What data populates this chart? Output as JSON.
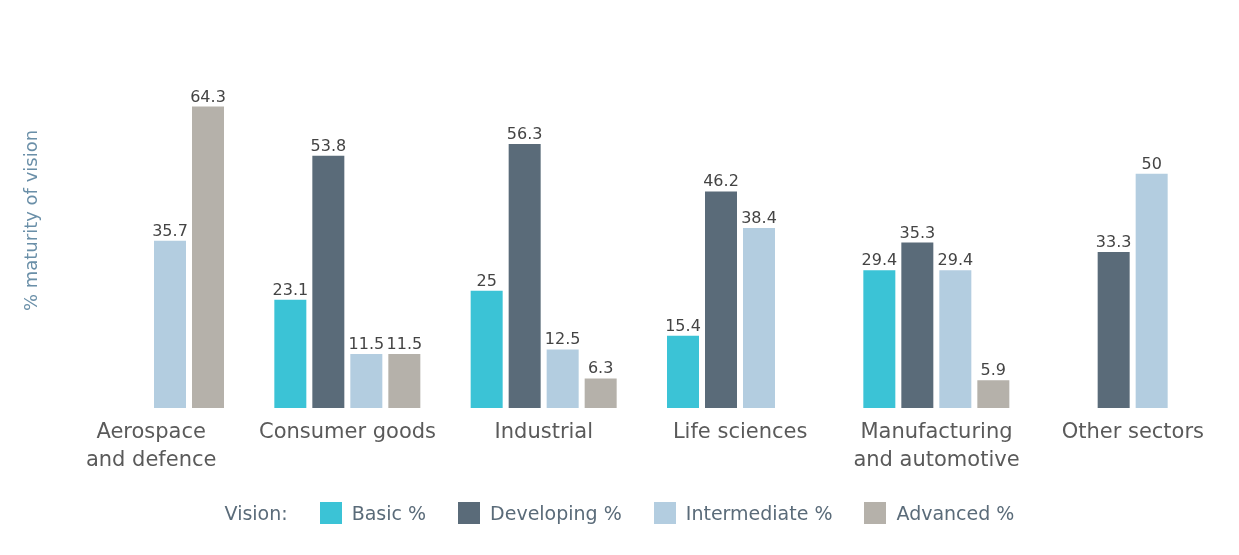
{
  "chart_data": {
    "type": "bar",
    "ylabel": "% maturity of vision",
    "legend_title": "Vision:",
    "legend": "bottom",
    "data_labels": true,
    "grid": false,
    "categories": [
      "Aerospace and defence",
      "Consumer goods",
      "Industrial",
      "Life sciences",
      "Manufacturing and automotive",
      "Other sectors"
    ],
    "series": [
      {
        "name": "Basic %",
        "color": "#3bc3d6",
        "values": [
          null,
          23.1,
          25,
          15.4,
          29.4,
          null
        ]
      },
      {
        "name": "Developing %",
        "color": "#5a6b79",
        "values": [
          null,
          53.8,
          56.3,
          46.2,
          35.3,
          33.3
        ]
      },
      {
        "name": "Intermediate %",
        "color": "#b3cde0",
        "values": [
          35.7,
          11.5,
          12.5,
          38.4,
          29.4,
          50
        ]
      },
      {
        "name": "Advanced %",
        "color": "#b5b1aa",
        "values": [
          64.3,
          11.5,
          6.3,
          null,
          5.9,
          null
        ]
      }
    ]
  }
}
